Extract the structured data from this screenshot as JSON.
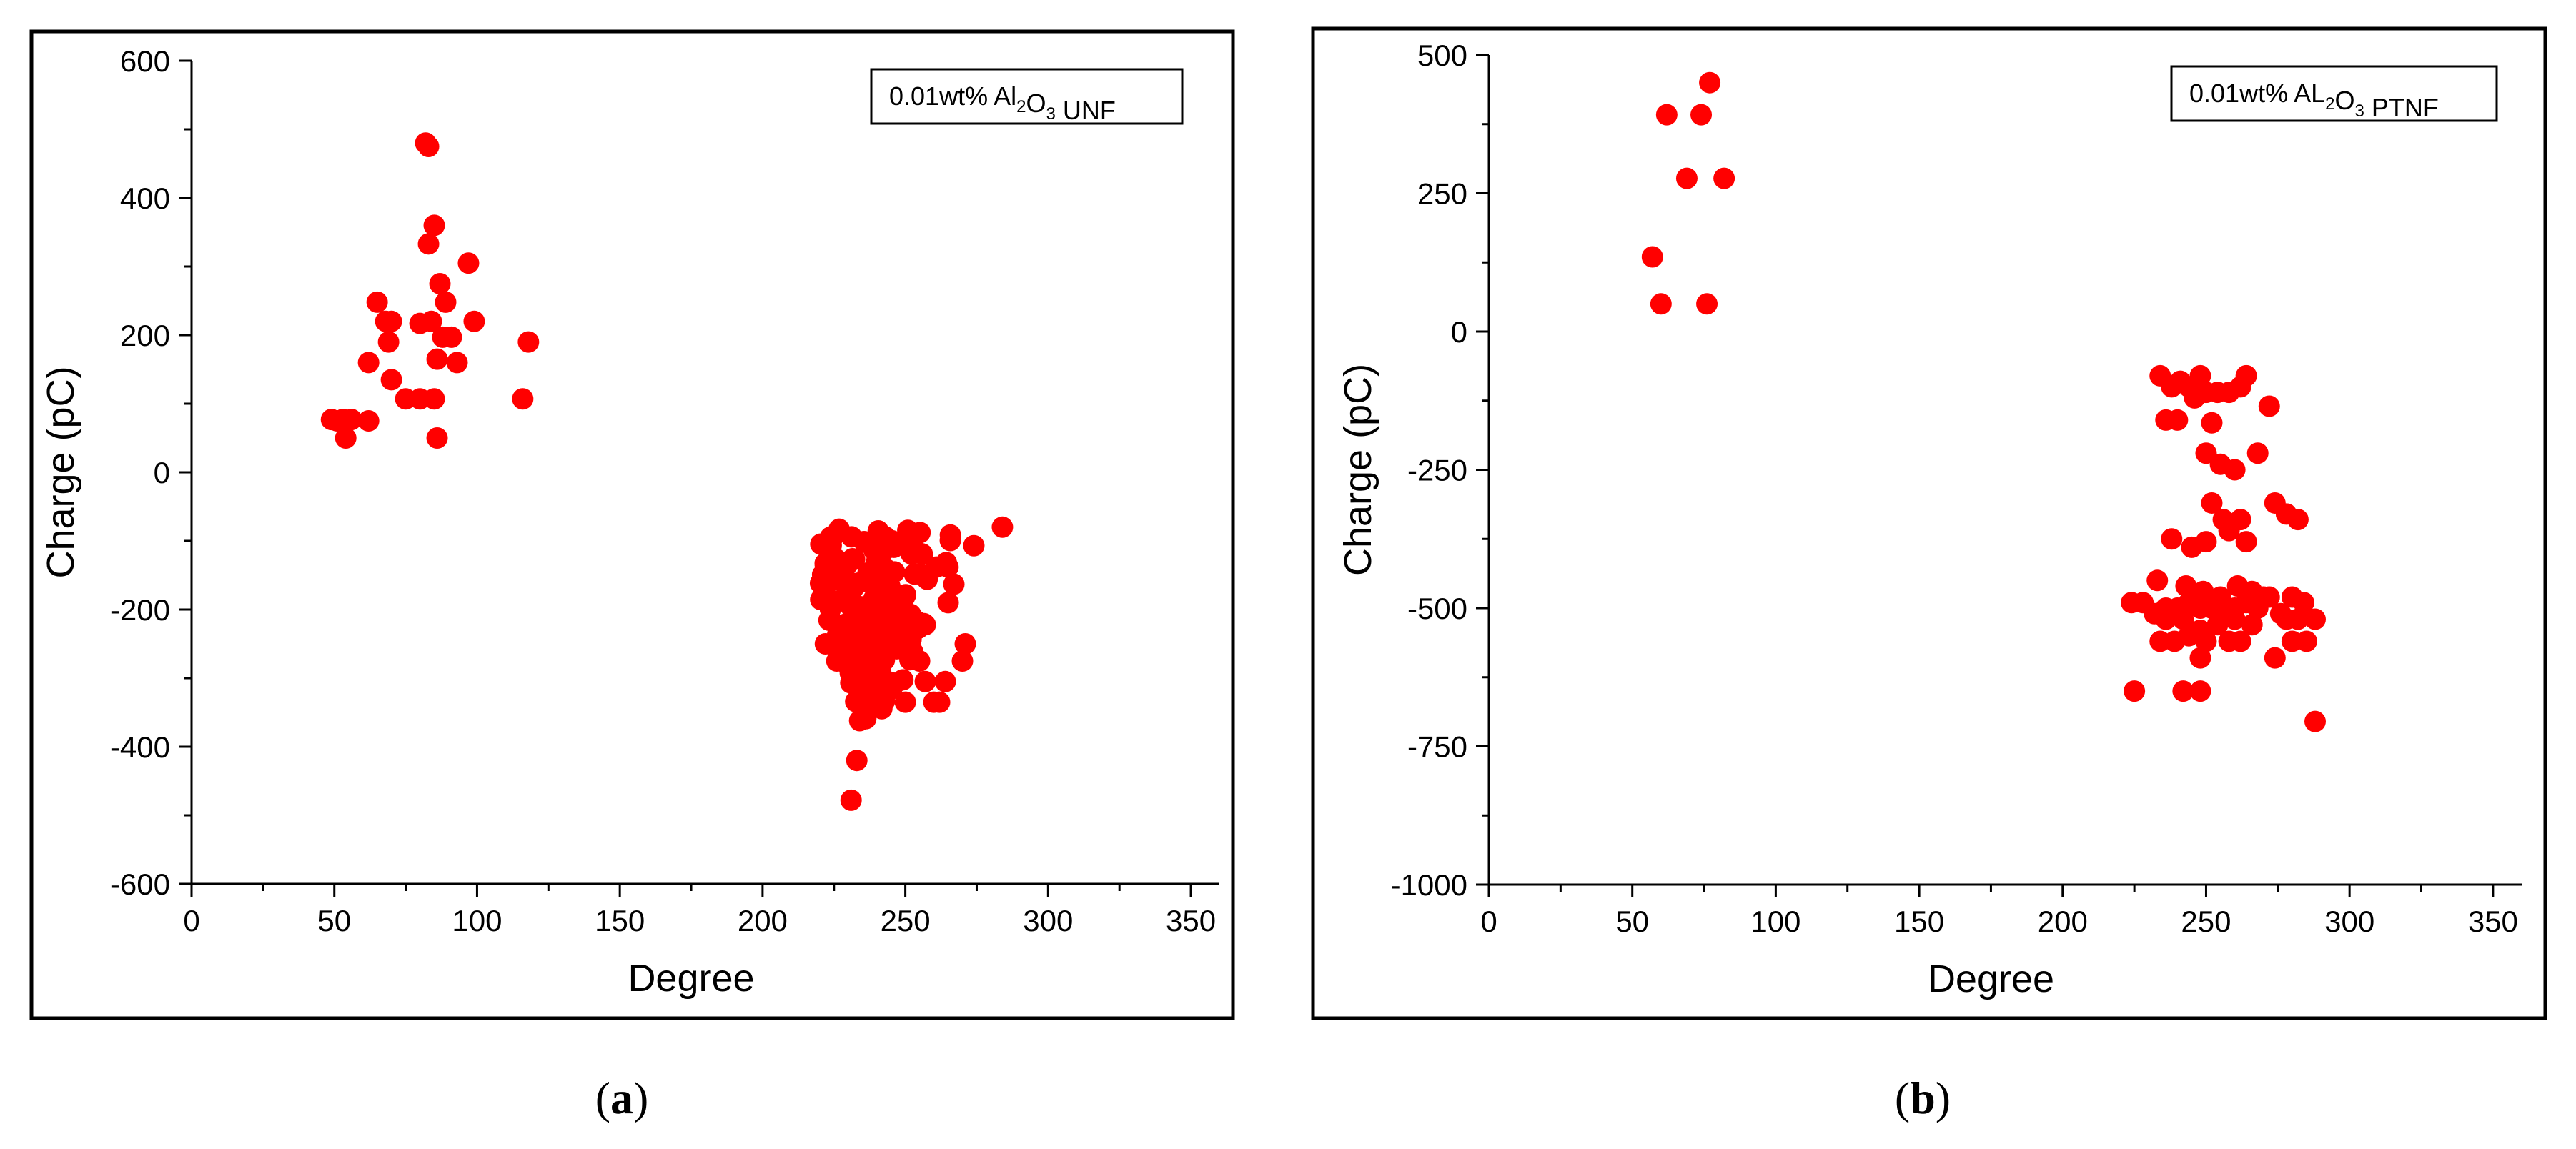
{
  "chart_data": [
    {
      "type": "scatter",
      "panel": "a",
      "legend": {
        "prefix": "0.01wt% Al",
        "sub1": "2",
        "mid": "O",
        "sub2": "3",
        "suffix": " UNF"
      },
      "xlabel": "Degree",
      "ylabel": "Charge (pC)",
      "xlim": [
        0,
        360
      ],
      "ylim": [
        -600,
        600
      ],
      "xticks": [
        0,
        50,
        100,
        150,
        200,
        250,
        300,
        350
      ],
      "yticks": [
        -600,
        -400,
        -200,
        0,
        200,
        400,
        600
      ],
      "marker_color": "#ff0000",
      "series": [
        {
          "x": [
            82,
            83,
            85,
            83,
            97,
            65,
            87,
            70,
            89,
            62,
            84,
            80,
            91,
            99,
            88,
            69,
            93,
            86,
            70,
            68,
            75,
            80,
            85,
            118,
            116,
            49,
            53,
            56,
            62,
            51,
            54,
            86
          ],
          "y": [
            480,
            475,
            360,
            333,
            305,
            248,
            275,
            220,
            248,
            160,
            220,
            217,
            197,
            220,
            197,
            190,
            160,
            165,
            135,
            220,
            107,
            107,
            107,
            190,
            107,
            77,
            77,
            77,
            75,
            75,
            50,
            50
          ],
          "cluster": {
            "x_ranges": [
              [
                218,
                268
              ],
              [
                220,
                262
              ],
              [
                222,
                258
              ],
              [
                225,
                255
              ],
              [
                228,
                250
              ],
              [
                232,
                244
              ]
            ],
            "y_bands": [
              [
                -80,
                -140
              ],
              [
                -140,
                -200
              ],
              [
                -200,
                -240
              ],
              [
                -240,
                -275
              ],
              [
                -275,
                -320
              ],
              [
                -320,
                -360
              ]
            ],
            "count_per_band": [
              40,
              40,
              30,
              25,
              15,
              8
            ],
            "extra_x": [
              284,
              274,
              271,
              267,
              270,
              264,
              257,
              260,
              262,
              255,
              250,
              265,
              230,
              226,
              222,
              236,
              234,
              233,
              231
            ],
            "extra_y": [
              -80,
              -107,
              -250,
              -163,
              -275,
              -305,
              -305,
              -335,
              -335,
              -275,
              -335,
              -190,
              -275,
              -275,
              -250,
              -335,
              -362,
              -420,
              -478
            ]
          }
        }
      ]
    },
    {
      "type": "scatter",
      "panel": "b",
      "legend": {
        "prefix": "0.01wt% AL",
        "sub1": "2",
        "mid": "O",
        "sub2": "3",
        "suffix": " PTNF"
      },
      "xlabel": "Degree",
      "ylabel": "Charge (pC)",
      "xlim": [
        0,
        360
      ],
      "ylim": [
        -1000,
        500
      ],
      "xticks": [
        0,
        50,
        100,
        150,
        200,
        250,
        300,
        350
      ],
      "yticks": [
        -1000,
        -750,
        -500,
        -250,
        0,
        250,
        500
      ],
      "marker_color": "#ff0000",
      "series": [
        {
          "x": [
            77,
            62,
            74,
            69,
            82,
            57,
            60,
            76,
            234,
            238,
            241,
            244,
            248,
            250,
            254,
            262,
            264,
            272,
            236,
            240,
            246,
            252,
            258,
            250,
            268,
            260,
            255,
            238,
            245,
            252,
            256,
            262,
            274,
            278,
            282,
            250,
            258,
            264,
            233,
            243,
            249,
            255,
            261,
            266,
            270,
            224,
            228,
            232,
            236,
            240,
            244,
            248,
            252,
            256,
            260,
            264,
            268,
            272,
            276,
            280,
            284,
            236,
            242,
            248,
            254,
            260,
            266,
            278,
            282,
            288,
            234,
            239,
            244,
            250,
            258,
            262,
            280,
            285,
            248,
            274,
            225,
            242,
            248,
            288
          ],
          "y": [
            450,
            392,
            392,
            277,
            277,
            135,
            50,
            50,
            -80,
            -100,
            -90,
            -100,
            -80,
            -110,
            -110,
            -100,
            -80,
            -135,
            -160,
            -160,
            -120,
            -165,
            -110,
            -220,
            -220,
            -250,
            -240,
            -375,
            -390,
            -310,
            -340,
            -340,
            -310,
            -330,
            -340,
            -380,
            -360,
            -380,
            -450,
            -460,
            -470,
            -480,
            -460,
            -470,
            -480,
            -490,
            -490,
            -510,
            -500,
            -500,
            -490,
            -500,
            -500,
            -510,
            -500,
            -490,
            -500,
            -480,
            -510,
            -480,
            -490,
            -520,
            -520,
            -540,
            -530,
            -520,
            -530,
            -520,
            -520,
            -520,
            -560,
            -560,
            -550,
            -560,
            -560,
            -560,
            -560,
            -560,
            -590,
            -590,
            -650,
            -650,
            -650,
            -705
          ]
        }
      ]
    }
  ],
  "captions": [
    {
      "open": "(",
      "label": "a",
      "close": ")"
    },
    {
      "open": "(",
      "label": "b",
      "close": ")"
    }
  ]
}
